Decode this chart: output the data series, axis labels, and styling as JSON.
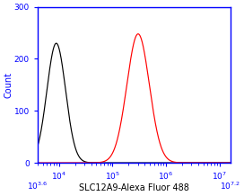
{
  "title": "",
  "xlabel": "SLC12A9-Alexa Fluor 488",
  "ylabel": "Count",
  "xlim_log": [
    3.6,
    7.2
  ],
  "ylim": [
    0,
    300
  ],
  "yticks": [
    0,
    100,
    200,
    300
  ],
  "axis_color": "#0000FF",
  "black_peak_log": 3.95,
  "black_peak_height": 230,
  "black_sigma_log": 0.175,
  "red_peak_log": 5.48,
  "red_peak_height": 248,
  "red_sigma_log": 0.21,
  "black_color": "#000000",
  "red_color": "#FF0000",
  "bg_color": "#FFFFFF",
  "xlabel_fontsize": 7,
  "ylabel_fontsize": 7,
  "tick_fontsize": 6.5,
  "xlabel_color": "#000000"
}
